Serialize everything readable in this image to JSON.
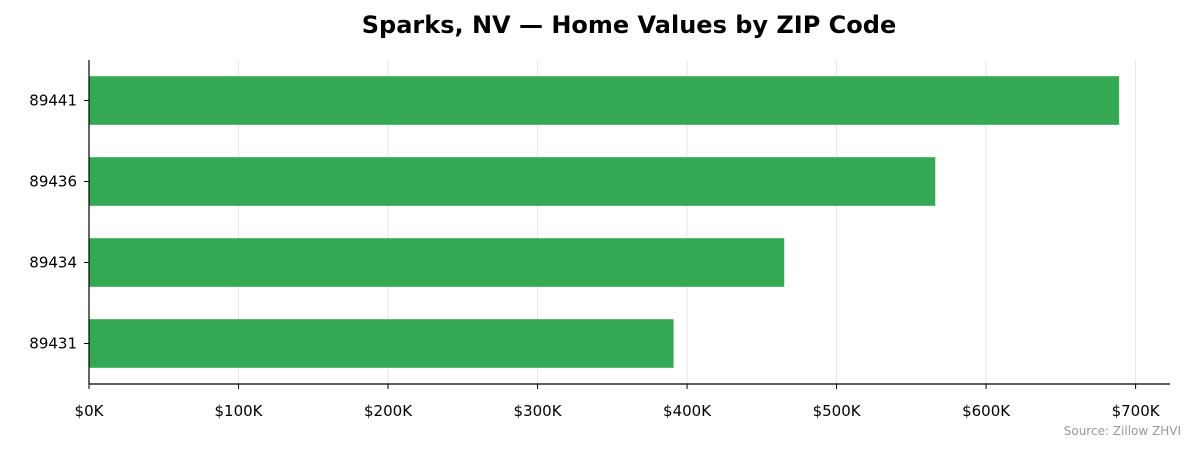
{
  "chart_data": {
    "type": "bar",
    "orientation": "horizontal",
    "title": "Sparks, NV — Home Values by ZIP Code",
    "xlabel": "",
    "ylabel": "",
    "categories": [
      "89441",
      "89436",
      "89434",
      "89431"
    ],
    "values": [
      689000,
      566000,
      465000,
      391000
    ],
    "xlim": [
      0,
      723000
    ],
    "x_ticks": [
      0,
      100000,
      200000,
      300000,
      400000,
      500000,
      600000,
      700000
    ],
    "x_tick_labels": [
      "$0K",
      "$100K",
      "$200K",
      "$300K",
      "$400K",
      "$500K",
      "$600K",
      "$700K"
    ],
    "grid": "vertical",
    "bar_color": "#34a853",
    "source": "Source: Zillow ZHVI"
  }
}
